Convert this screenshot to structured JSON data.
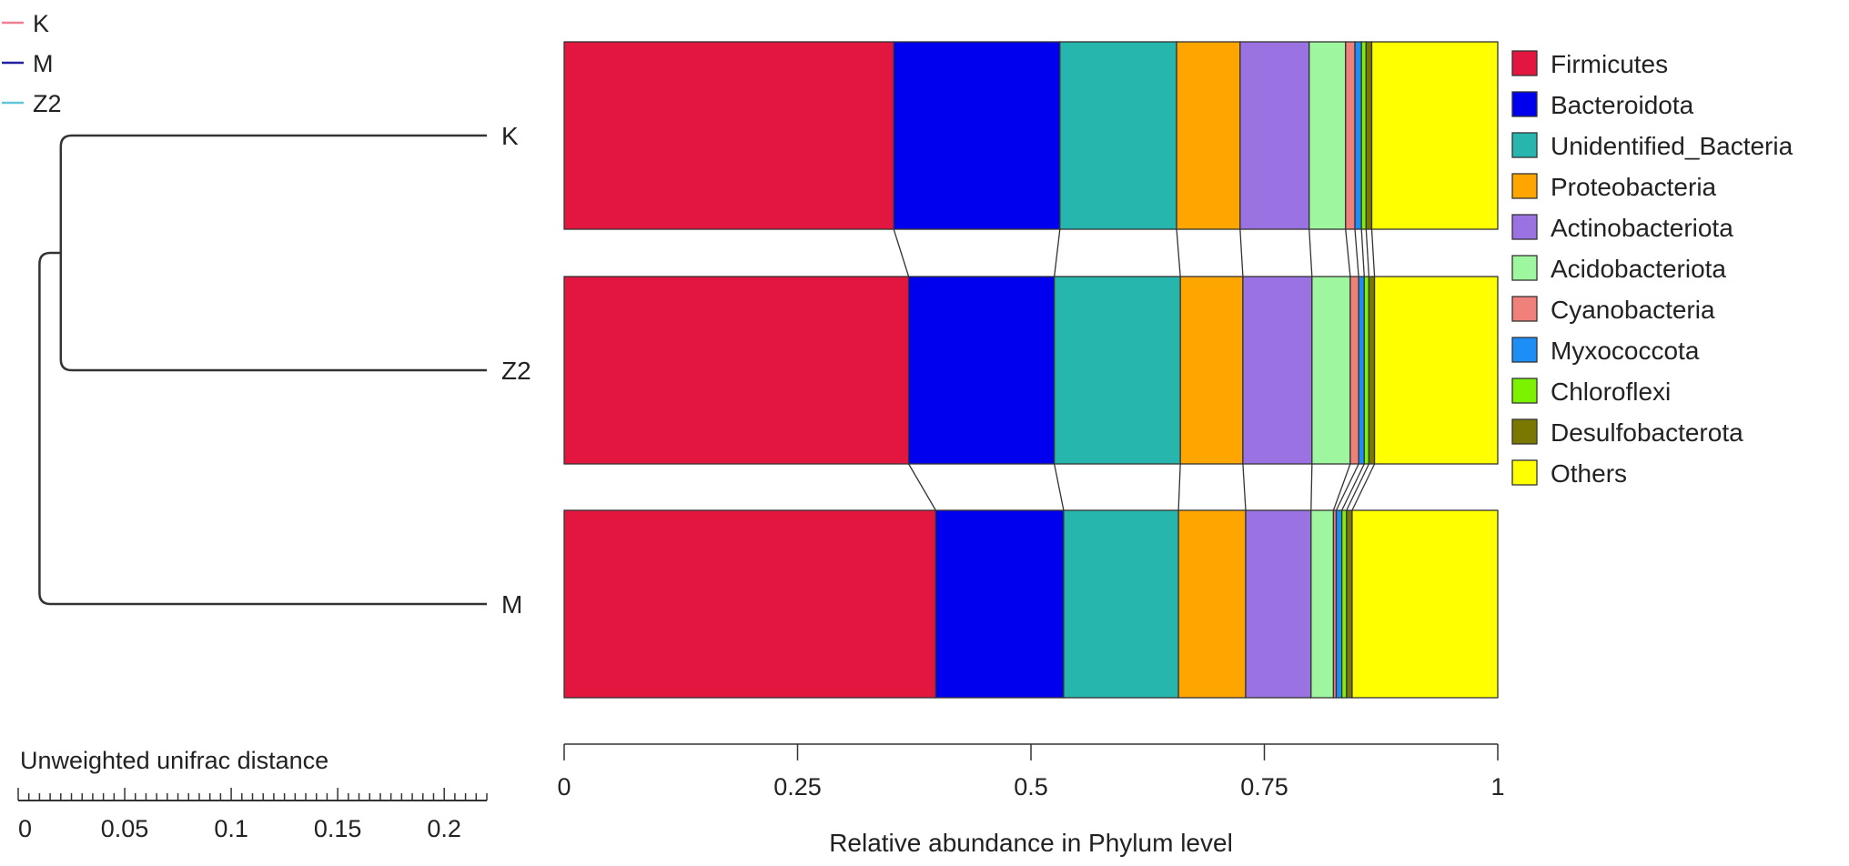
{
  "chart_data": {
    "type": "bar",
    "orientation": "horizontal",
    "stacked": true,
    "xlabel": "Relative abundance in Phylum level",
    "xlim": [
      0,
      1
    ],
    "xticks": [
      "0",
      "0.25",
      "0.5",
      "0.75",
      "1"
    ],
    "samples": [
      "K",
      "Z2",
      "M"
    ],
    "series": [
      {
        "name": "Firmicutes",
        "color": "#E3163F",
        "values": [
          0.353,
          0.369,
          0.398
        ]
      },
      {
        "name": "Bacteroidota",
        "color": "#0000EE",
        "values": [
          0.178,
          0.156,
          0.137
        ]
      },
      {
        "name": "Unidentified_Bacteria",
        "color": "#26B6AE",
        "values": [
          0.125,
          0.135,
          0.123
        ]
      },
      {
        "name": "Proteobacteria",
        "color": "#FFA500",
        "values": [
          0.068,
          0.067,
          0.072
        ]
      },
      {
        "name": "Actinobacteriota",
        "color": "#9B72E2",
        "values": [
          0.074,
          0.074,
          0.07
        ]
      },
      {
        "name": "Acidobacteriota",
        "color": "#9EF79E",
        "values": [
          0.039,
          0.041,
          0.024
        ]
      },
      {
        "name": "Cyanobacteria",
        "color": "#F0807A",
        "values": [
          0.01,
          0.009,
          0.003
        ]
      },
      {
        "name": "Myxococcota",
        "color": "#1E8EF7",
        "values": [
          0.007,
          0.006,
          0.006
        ]
      },
      {
        "name": "Chloroflexi",
        "color": "#7CF200",
        "values": [
          0.005,
          0.005,
          0.005
        ]
      },
      {
        "name": "Desulfobacterota",
        "color": "#7A7800",
        "values": [
          0.006,
          0.006,
          0.006
        ]
      },
      {
        "name": "Others",
        "color": "#FFFF00",
        "values": [
          0.135,
          0.132,
          0.156
        ]
      }
    ],
    "dendrogram": {
      "title": "Unweighted unifrac distance",
      "scale_ticks": [
        "0",
        "0.05",
        "0.1",
        "0.15",
        "0.2"
      ],
      "scale_max": 0.22,
      "leaves": [
        "K",
        "Z2",
        "M"
      ],
      "merges": [
        {
          "members": [
            "K",
            "Z2"
          ],
          "height": 0.2
        },
        {
          "members": [
            "K",
            "Z2",
            "M"
          ],
          "height": 0.21
        }
      ]
    },
    "group_legend": [
      {
        "name": "K",
        "color": "#F08090"
      },
      {
        "name": "M",
        "color": "#2020A0"
      },
      {
        "name": "Z2",
        "color": "#60C8D8"
      }
    ]
  }
}
